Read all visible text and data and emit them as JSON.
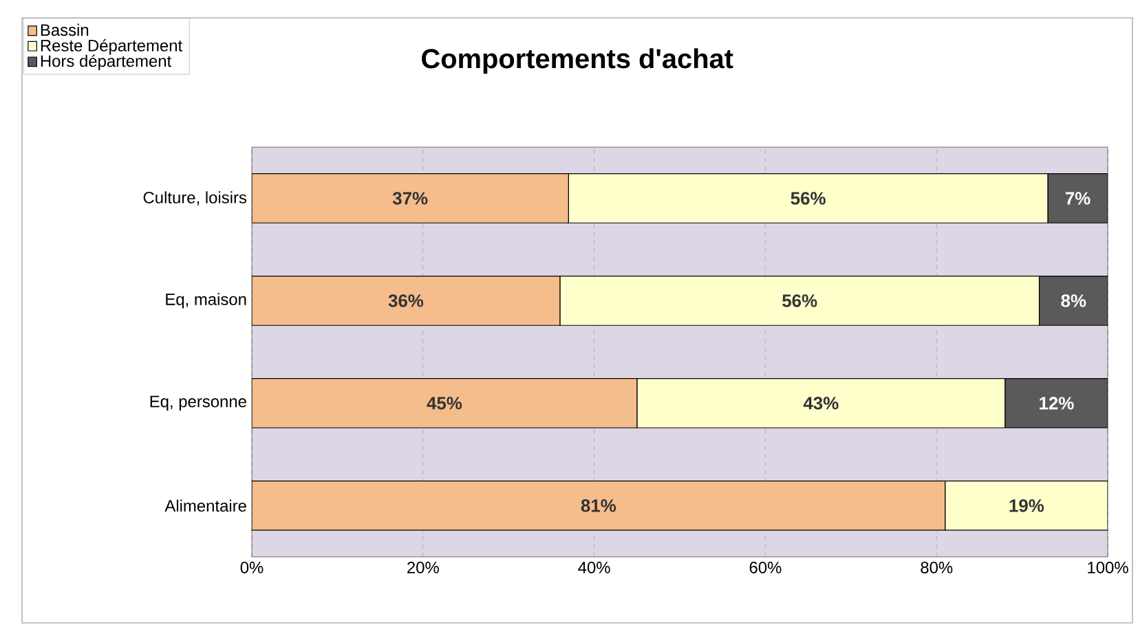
{
  "chart_data": {
    "type": "bar",
    "orientation": "horizontal",
    "stacked": true,
    "title": "Comportements d'achat",
    "categories": [
      "Culture, loisirs",
      "Eq, maison",
      "Eq, personne",
      "Alimentaire"
    ],
    "series": [
      {
        "name": "Bassin",
        "color": "#f5bd8c",
        "values": [
          37,
          36,
          45,
          81
        ],
        "value_labels": [
          "37%",
          "36%",
          "45%",
          "81%"
        ]
      },
      {
        "name": "Reste Département",
        "color": "#ffffcc",
        "values": [
          56,
          56,
          43,
          19
        ],
        "value_labels": [
          "56%",
          "56%",
          "43%",
          "19%"
        ]
      },
      {
        "name": "Hors département",
        "color": "#5a5a5a",
        "values": [
          7,
          8,
          12,
          0
        ],
        "value_labels": [
          "7%",
          "8%",
          "12%",
          null
        ]
      }
    ],
    "xlim": [
      0,
      100
    ],
    "xticks": [
      {
        "value": 0,
        "label": "0%"
      },
      {
        "value": 20,
        "label": "20%"
      },
      {
        "value": 40,
        "label": "40%"
      },
      {
        "value": 60,
        "label": "60%"
      },
      {
        "value": 80,
        "label": "80%"
      },
      {
        "value": 100,
        "label": "100%"
      }
    ],
    "grid": "x",
    "legend": "top left"
  }
}
